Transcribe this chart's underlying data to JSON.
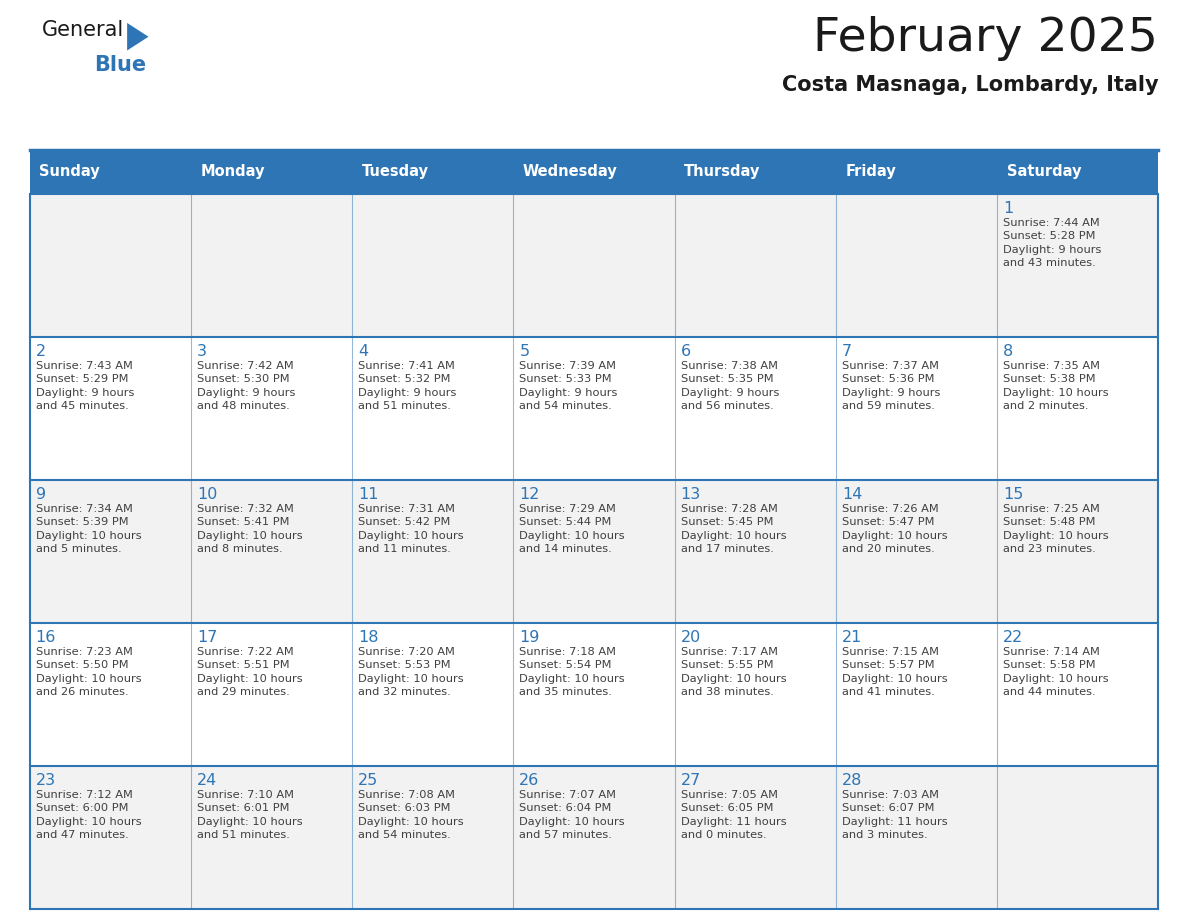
{
  "title": "February 2025",
  "subtitle": "Costa Masnaga, Lombardy, Italy",
  "header_color": "#2E75B6",
  "header_text_color": "#FFFFFF",
  "cell_bg_even": "#FFFFFF",
  "cell_bg_odd": "#F2F2F2",
  "day_number_color": "#2E75B6",
  "info_text_color": "#404040",
  "border_color": "#2E75B6",
  "title_color": "#1a1a1a",
  "subtitle_color": "#1a1a1a",
  "background_color": "#FFFFFF",
  "days_of_week": [
    "Sunday",
    "Monday",
    "Tuesday",
    "Wednesday",
    "Thursday",
    "Friday",
    "Saturday"
  ],
  "weeks": [
    [
      {
        "day": null,
        "info": null
      },
      {
        "day": null,
        "info": null
      },
      {
        "day": null,
        "info": null
      },
      {
        "day": null,
        "info": null
      },
      {
        "day": null,
        "info": null
      },
      {
        "day": null,
        "info": null
      },
      {
        "day": 1,
        "info": "Sunrise: 7:44 AM\nSunset: 5:28 PM\nDaylight: 9 hours\nand 43 minutes."
      }
    ],
    [
      {
        "day": 2,
        "info": "Sunrise: 7:43 AM\nSunset: 5:29 PM\nDaylight: 9 hours\nand 45 minutes."
      },
      {
        "day": 3,
        "info": "Sunrise: 7:42 AM\nSunset: 5:30 PM\nDaylight: 9 hours\nand 48 minutes."
      },
      {
        "day": 4,
        "info": "Sunrise: 7:41 AM\nSunset: 5:32 PM\nDaylight: 9 hours\nand 51 minutes."
      },
      {
        "day": 5,
        "info": "Sunrise: 7:39 AM\nSunset: 5:33 PM\nDaylight: 9 hours\nand 54 minutes."
      },
      {
        "day": 6,
        "info": "Sunrise: 7:38 AM\nSunset: 5:35 PM\nDaylight: 9 hours\nand 56 minutes."
      },
      {
        "day": 7,
        "info": "Sunrise: 7:37 AM\nSunset: 5:36 PM\nDaylight: 9 hours\nand 59 minutes."
      },
      {
        "day": 8,
        "info": "Sunrise: 7:35 AM\nSunset: 5:38 PM\nDaylight: 10 hours\nand 2 minutes."
      }
    ],
    [
      {
        "day": 9,
        "info": "Sunrise: 7:34 AM\nSunset: 5:39 PM\nDaylight: 10 hours\nand 5 minutes."
      },
      {
        "day": 10,
        "info": "Sunrise: 7:32 AM\nSunset: 5:41 PM\nDaylight: 10 hours\nand 8 minutes."
      },
      {
        "day": 11,
        "info": "Sunrise: 7:31 AM\nSunset: 5:42 PM\nDaylight: 10 hours\nand 11 minutes."
      },
      {
        "day": 12,
        "info": "Sunrise: 7:29 AM\nSunset: 5:44 PM\nDaylight: 10 hours\nand 14 minutes."
      },
      {
        "day": 13,
        "info": "Sunrise: 7:28 AM\nSunset: 5:45 PM\nDaylight: 10 hours\nand 17 minutes."
      },
      {
        "day": 14,
        "info": "Sunrise: 7:26 AM\nSunset: 5:47 PM\nDaylight: 10 hours\nand 20 minutes."
      },
      {
        "day": 15,
        "info": "Sunrise: 7:25 AM\nSunset: 5:48 PM\nDaylight: 10 hours\nand 23 minutes."
      }
    ],
    [
      {
        "day": 16,
        "info": "Sunrise: 7:23 AM\nSunset: 5:50 PM\nDaylight: 10 hours\nand 26 minutes."
      },
      {
        "day": 17,
        "info": "Sunrise: 7:22 AM\nSunset: 5:51 PM\nDaylight: 10 hours\nand 29 minutes."
      },
      {
        "day": 18,
        "info": "Sunrise: 7:20 AM\nSunset: 5:53 PM\nDaylight: 10 hours\nand 32 minutes."
      },
      {
        "day": 19,
        "info": "Sunrise: 7:18 AM\nSunset: 5:54 PM\nDaylight: 10 hours\nand 35 minutes."
      },
      {
        "day": 20,
        "info": "Sunrise: 7:17 AM\nSunset: 5:55 PM\nDaylight: 10 hours\nand 38 minutes."
      },
      {
        "day": 21,
        "info": "Sunrise: 7:15 AM\nSunset: 5:57 PM\nDaylight: 10 hours\nand 41 minutes."
      },
      {
        "day": 22,
        "info": "Sunrise: 7:14 AM\nSunset: 5:58 PM\nDaylight: 10 hours\nand 44 minutes."
      }
    ],
    [
      {
        "day": 23,
        "info": "Sunrise: 7:12 AM\nSunset: 6:00 PM\nDaylight: 10 hours\nand 47 minutes."
      },
      {
        "day": 24,
        "info": "Sunrise: 7:10 AM\nSunset: 6:01 PM\nDaylight: 10 hours\nand 51 minutes."
      },
      {
        "day": 25,
        "info": "Sunrise: 7:08 AM\nSunset: 6:03 PM\nDaylight: 10 hours\nand 54 minutes."
      },
      {
        "day": 26,
        "info": "Sunrise: 7:07 AM\nSunset: 6:04 PM\nDaylight: 10 hours\nand 57 minutes."
      },
      {
        "day": 27,
        "info": "Sunrise: 7:05 AM\nSunset: 6:05 PM\nDaylight: 11 hours\nand 0 minutes."
      },
      {
        "day": 28,
        "info": "Sunrise: 7:03 AM\nSunset: 6:07 PM\nDaylight: 11 hours\nand 3 minutes."
      },
      {
        "day": null,
        "info": null
      }
    ]
  ],
  "logo_general_color": "#1a1a1a",
  "logo_blue_color": "#2E75B6",
  "logo_triangle_color": "#2E75B6"
}
